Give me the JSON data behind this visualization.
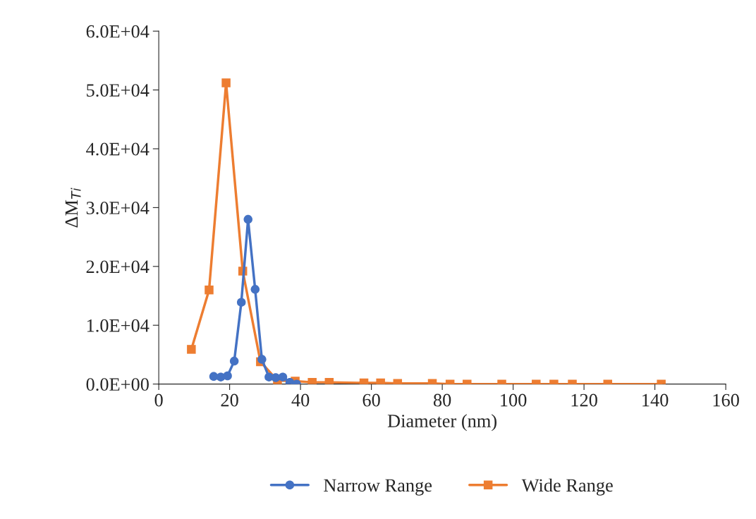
{
  "chart_data": {
    "type": "line",
    "xlabel": "Diameter (nm)",
    "ylabel": "ΔM$_{Ti}$",
    "xlim": [
      0,
      160
    ],
    "xticks": [
      0,
      20,
      40,
      60,
      80,
      100,
      120,
      140,
      160
    ],
    "ylim": [
      0,
      60000
    ],
    "yticks": [
      {
        "value": 0,
        "label": "0.0E+00"
      },
      {
        "value": 10000,
        "label": "1.0E+04"
      },
      {
        "value": 20000,
        "label": "2.0E+04"
      },
      {
        "value": 30000,
        "label": "3.0E+04"
      },
      {
        "value": 40000,
        "label": "4.0E+04"
      },
      {
        "value": 50000,
        "label": "5.0E+04"
      },
      {
        "value": 60000,
        "label": "6.0E+04"
      }
    ],
    "grid": false,
    "legend": "bottom",
    "series": [
      {
        "name": "Narrow Range",
        "color": "#4472c4",
        "marker": "circle",
        "x": [
          15.5,
          17.5,
          19.4,
          21.3,
          23.3,
          25.2,
          27.2,
          29.1,
          31.1,
          33.0,
          35.0,
          37.0,
          38.9
        ],
        "values": [
          1300,
          1200,
          1400,
          3900,
          13900,
          28000,
          16100,
          4200,
          1200,
          1100,
          1200,
          300,
          0
        ]
      },
      {
        "name": "Wide Range",
        "color": "#ed7d31",
        "marker": "square",
        "x": [
          9.2,
          14.2,
          19.0,
          23.7,
          28.7,
          33.5,
          38.5,
          43.3,
          48.1,
          57.9,
          62.6,
          67.4,
          77.2,
          82.2,
          87.0,
          96.8,
          106.5,
          111.5,
          116.7,
          126.7,
          141.8
        ],
        "values": [
          5900,
          16000,
          51200,
          19200,
          3800,
          600,
          500,
          300,
          300,
          200,
          200,
          100,
          100,
          0,
          0,
          0,
          0,
          0,
          0,
          0,
          0
        ]
      }
    ]
  }
}
